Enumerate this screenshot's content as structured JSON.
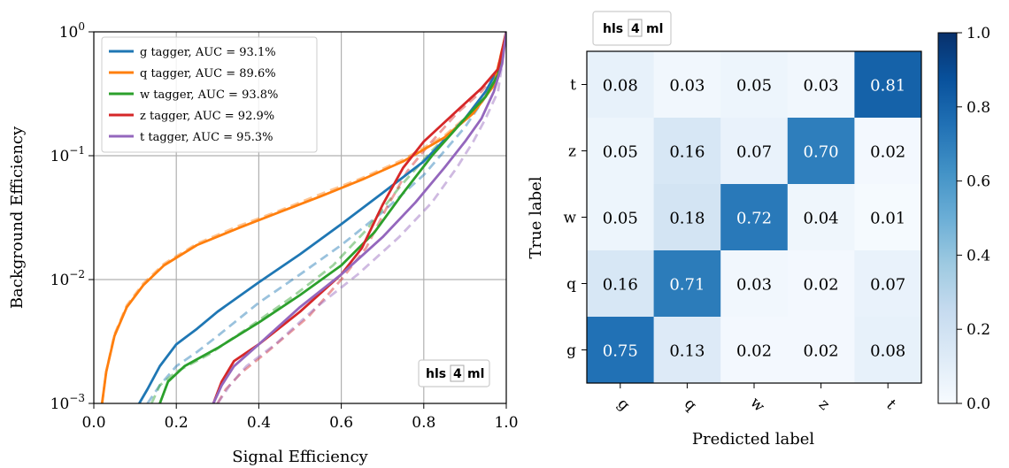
{
  "chart_data": [
    {
      "type": "line",
      "xlabel": "Signal Efficiency",
      "ylabel": "Background Efficiency",
      "xlim": [
        0.0,
        1.0
      ],
      "ylim": [
        0.001,
        1.0
      ],
      "yscale": "log",
      "grid": true,
      "legend_position": "top-left",
      "x_ticks": [
        "0.0",
        "0.2",
        "0.4",
        "0.6",
        "0.8",
        "1.0"
      ],
      "y_ticks": [
        {
          "base": "10",
          "exp": "0"
        },
        {
          "base": "10",
          "exp": "−1"
        },
        {
          "base": "10",
          "exp": "−2"
        },
        {
          "base": "10",
          "exp": "−3"
        }
      ],
      "logo": {
        "left": "hls",
        "mid": "4",
        "right": "ml"
      },
      "series": [
        {
          "name": "g tagger, AUC = 93.1%",
          "color": "#1f77b4",
          "x": [
            0.11,
            0.13,
            0.16,
            0.2,
            0.25,
            0.3,
            0.4,
            0.5,
            0.6,
            0.7,
            0.8,
            0.9,
            0.95,
            0.98,
            1.0
          ],
          "y": [
            0.001,
            0.0013,
            0.002,
            0.003,
            0.004,
            0.0055,
            0.0095,
            0.016,
            0.028,
            0.05,
            0.09,
            0.2,
            0.33,
            0.5,
            1.0
          ],
          "x_dashed": [
            0.13,
            0.16,
            0.2,
            0.25,
            0.3,
            0.4,
            0.5,
            0.6,
            0.7,
            0.8,
            0.9,
            0.95,
            0.98,
            1.0
          ],
          "y_dashed": [
            0.001,
            0.0014,
            0.002,
            0.0026,
            0.0035,
            0.0065,
            0.011,
            0.019,
            0.035,
            0.07,
            0.17,
            0.3,
            0.5,
            1.0
          ]
        },
        {
          "name": "q tagger, AUC = 89.6%",
          "color": "#ff7f0e",
          "x": [
            0.02,
            0.03,
            0.05,
            0.08,
            0.12,
            0.17,
            0.25,
            0.35,
            0.45,
            0.55,
            0.65,
            0.75,
            0.85,
            0.92,
            0.97,
            1.0
          ],
          "y": [
            0.001,
            0.0018,
            0.0035,
            0.006,
            0.009,
            0.013,
            0.019,
            0.026,
            0.035,
            0.047,
            0.064,
            0.09,
            0.14,
            0.22,
            0.37,
            1.0
          ],
          "x_dashed": [
            0.02,
            0.03,
            0.05,
            0.08,
            0.12,
            0.17,
            0.25,
            0.35,
            0.45,
            0.55,
            0.65,
            0.75,
            0.85,
            0.92,
            0.97,
            1.0
          ],
          "y_dashed": [
            0.001,
            0.0018,
            0.0036,
            0.0062,
            0.0093,
            0.0134,
            0.0195,
            0.027,
            0.036,
            0.049,
            0.066,
            0.093,
            0.145,
            0.23,
            0.38,
            1.0
          ]
        },
        {
          "name": "w tagger, AUC = 93.8%",
          "color": "#2ca02c",
          "x": [
            0.16,
            0.18,
            0.22,
            0.3,
            0.4,
            0.5,
            0.6,
            0.68,
            0.75,
            0.82,
            0.9,
            0.95,
            0.98,
            1.0
          ],
          "y": [
            0.001,
            0.0015,
            0.002,
            0.0028,
            0.0045,
            0.0075,
            0.013,
            0.024,
            0.05,
            0.1,
            0.2,
            0.3,
            0.45,
            1.0
          ],
          "x_dashed": [
            0.14,
            0.16,
            0.2,
            0.28,
            0.38,
            0.48,
            0.58,
            0.66,
            0.74,
            0.82,
            0.9,
            0.95,
            0.98,
            1.0
          ],
          "y_dashed": [
            0.001,
            0.0014,
            0.0018,
            0.0025,
            0.0042,
            0.0072,
            0.013,
            0.025,
            0.055,
            0.11,
            0.2,
            0.3,
            0.45,
            1.0
          ]
        },
        {
          "name": "z tagger, AUC = 92.9%",
          "color": "#d62728",
          "x": [
            0.29,
            0.31,
            0.34,
            0.4,
            0.5,
            0.6,
            0.65,
            0.7,
            0.75,
            0.8,
            0.88,
            0.94,
            0.98,
            1.0
          ],
          "y": [
            0.001,
            0.0015,
            0.0022,
            0.003,
            0.0055,
            0.011,
            0.018,
            0.04,
            0.08,
            0.13,
            0.23,
            0.35,
            0.5,
            1.0
          ],
          "x_dashed": [
            0.3,
            0.32,
            0.36,
            0.42,
            0.52,
            0.6,
            0.66,
            0.71,
            0.76,
            0.81,
            0.88,
            0.94,
            0.98,
            1.0
          ],
          "y_dashed": [
            0.001,
            0.0013,
            0.0018,
            0.0026,
            0.005,
            0.01,
            0.018,
            0.038,
            0.075,
            0.12,
            0.22,
            0.33,
            0.48,
            1.0
          ]
        },
        {
          "name": "t tagger, AUC = 95.3%",
          "color": "#9467bd",
          "x": [
            0.29,
            0.31,
            0.34,
            0.4,
            0.5,
            0.6,
            0.7,
            0.78,
            0.85,
            0.9,
            0.94,
            0.97,
            0.99,
            1.0
          ],
          "y": [
            0.001,
            0.0014,
            0.002,
            0.003,
            0.006,
            0.011,
            0.022,
            0.042,
            0.08,
            0.13,
            0.2,
            0.33,
            0.55,
            1.0
          ],
          "x_dashed": [
            0.3,
            0.33,
            0.37,
            0.44,
            0.54,
            0.64,
            0.74,
            0.82,
            0.88,
            0.92,
            0.95,
            0.98,
            0.99,
            1.0
          ],
          "y_dashed": [
            0.001,
            0.0014,
            0.002,
            0.003,
            0.006,
            0.011,
            0.022,
            0.042,
            0.08,
            0.13,
            0.2,
            0.33,
            0.55,
            1.0
          ]
        }
      ]
    },
    {
      "type": "heatmap",
      "xlabel": "Predicted label",
      "ylabel": "True label",
      "x_categories": [
        "g",
        "q",
        "w",
        "z",
        "t"
      ],
      "y_categories_top_to_bottom": [
        "t",
        "z",
        "w",
        "q",
        "g"
      ],
      "values_top_to_bottom": [
        [
          "0.08",
          "0.03",
          "0.05",
          "0.03",
          "0.81"
        ],
        [
          "0.05",
          "0.16",
          "0.07",
          "0.70",
          "0.02"
        ],
        [
          "0.05",
          "0.18",
          "0.72",
          "0.04",
          "0.01"
        ],
        [
          "0.16",
          "0.71",
          "0.03",
          "0.02",
          "0.07"
        ],
        [
          "0.75",
          "0.13",
          "0.02",
          "0.02",
          "0.08"
        ]
      ],
      "colorbar": {
        "min": 0.0,
        "max": 1.0,
        "ticks": [
          "0.0",
          "0.2",
          "0.4",
          "0.6",
          "0.8",
          "1.0"
        ],
        "colormap": "Blues"
      },
      "logo": {
        "left": "hls",
        "mid": "4",
        "right": "ml"
      }
    }
  ]
}
